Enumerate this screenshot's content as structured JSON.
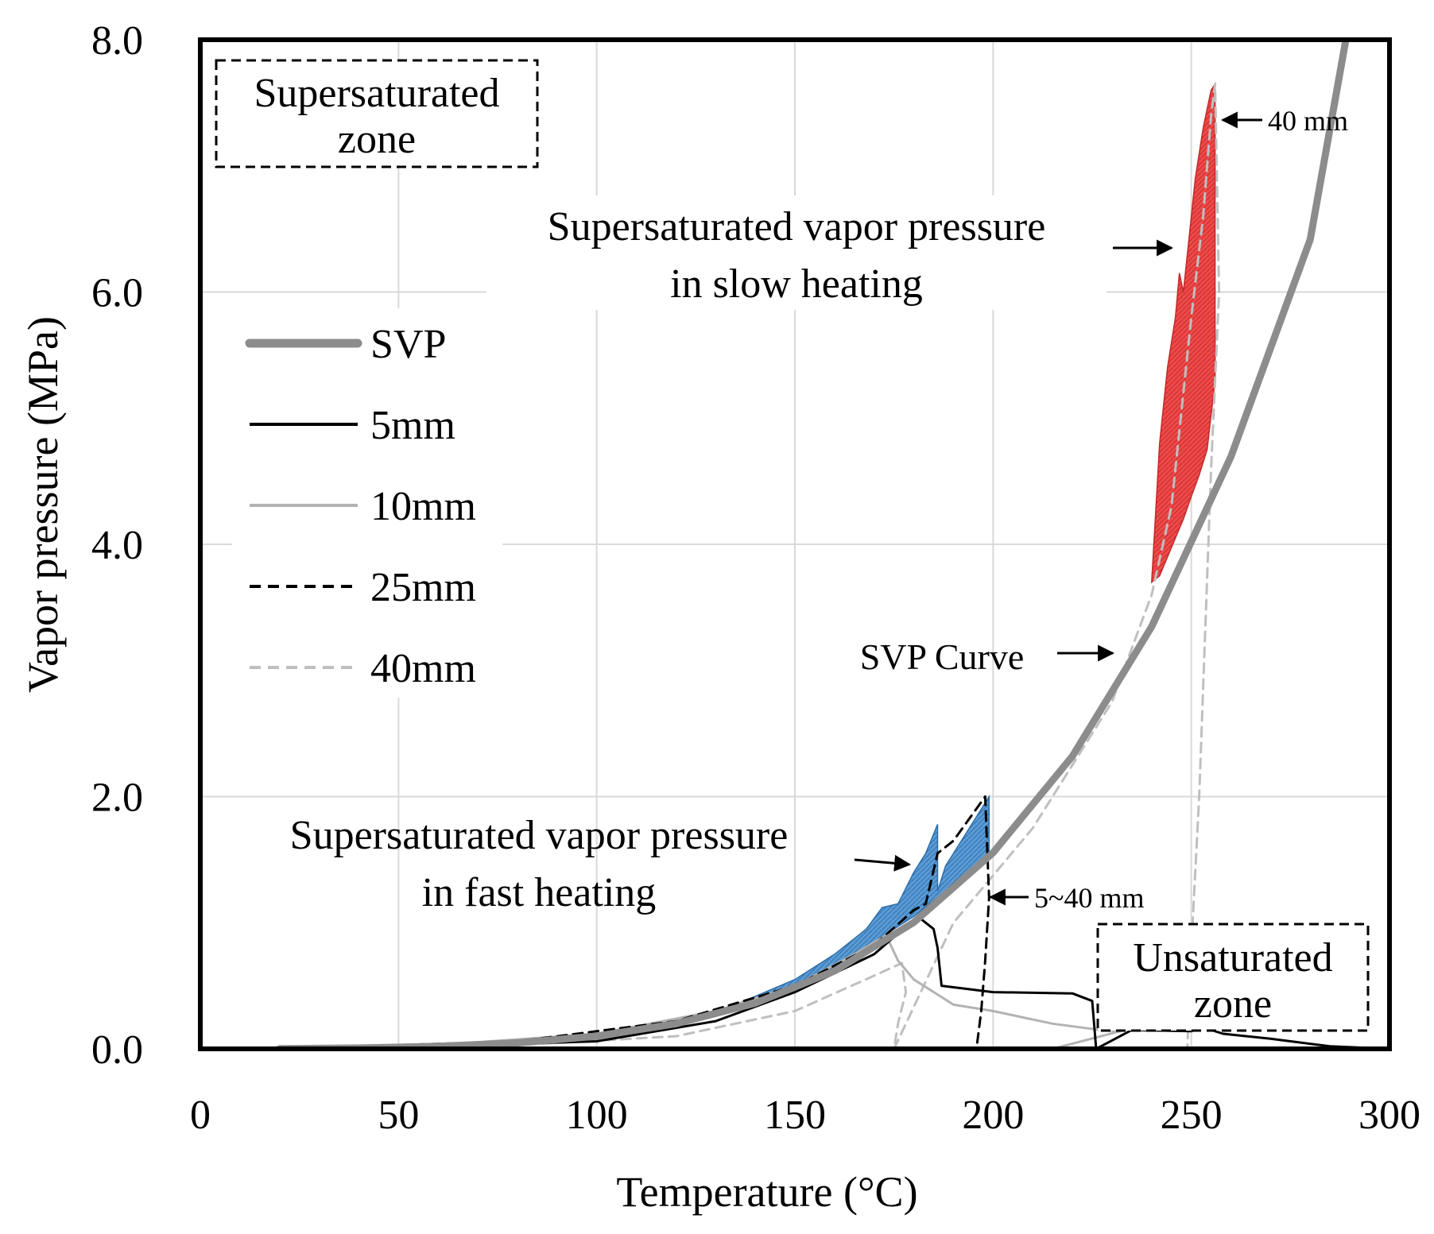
{
  "chart_data": {
    "type": "line",
    "title": "",
    "xlabel": "Temperature (°C)",
    "ylabel": "Vapor pressure (MPa)",
    "xlim": [
      0,
      300
    ],
    "ylim": [
      0,
      8
    ],
    "x_ticks": [
      0,
      50,
      100,
      150,
      200,
      250,
      300
    ],
    "x_tick_labels": [
      "0",
      "50",
      "100",
      "150",
      "200",
      "250",
      "300"
    ],
    "y_ticks": [
      0,
      2,
      4,
      6,
      8
    ],
    "y_tick_labels": [
      "0.0",
      "2.0",
      "4.0",
      "6.0",
      "8.0"
    ],
    "grid": true,
    "legend_position": "left-center",
    "legend": [
      "SVP",
      "5mm",
      "10mm",
      "25mm",
      "40mm"
    ],
    "colors": {
      "svp": "#8c8c8c",
      "mm5": "#000000",
      "mm10": "#b3b3b3",
      "mm25": "#000000",
      "mm40": "#bfbfbf",
      "fast_fill": "#5b9bd5",
      "slow_fill": "#ef4a4a",
      "grid": "#d9d9d9",
      "frame": "#000000"
    },
    "series": [
      {
        "name": "SVP",
        "style": "thick-solid",
        "x": [
          20,
          40,
          60,
          80,
          100,
          120,
          140,
          160,
          180,
          200,
          220,
          240,
          260,
          280,
          289
        ],
        "y": [
          0.002,
          0.007,
          0.02,
          0.047,
          0.101,
          0.199,
          0.362,
          0.618,
          1.003,
          1.555,
          2.32,
          3.347,
          4.694,
          6.417,
          8.0
        ]
      },
      {
        "name": "5mm",
        "style": "solid",
        "x": [
          5,
          50,
          100,
          130,
          150,
          170,
          181,
          185,
          186,
          187,
          200,
          220,
          225,
          226,
          235,
          250,
          253,
          258,
          270,
          285,
          300
        ],
        "y": [
          0,
          0.01,
          0.06,
          0.22,
          0.45,
          0.75,
          1.05,
          0.95,
          0.8,
          0.5,
          0.45,
          0.44,
          0.38,
          0.0,
          0.15,
          0.14,
          0.17,
          0.12,
          0.08,
          0.02,
          0.0
        ]
      },
      {
        "name": "10mm",
        "style": "solid",
        "x": [
          20,
          60,
          100,
          130,
          150,
          165,
          173,
          176,
          180,
          190,
          200,
          215,
          227,
          232,
          215,
          300
        ],
        "y": [
          0.01,
          0.03,
          0.12,
          0.3,
          0.5,
          0.75,
          0.9,
          0.7,
          0.55,
          0.35,
          0.3,
          0.2,
          0.15,
          0.14,
          0.0,
          0.0
        ]
      },
      {
        "name": "25mm",
        "style": "dashed",
        "x": [
          30,
          80,
          120,
          150,
          170,
          180,
          183,
          186,
          190,
          198,
          199,
          198,
          197,
          196
        ],
        "y": [
          0.01,
          0.06,
          0.22,
          0.5,
          0.82,
          1.1,
          1.15,
          1.55,
          1.65,
          2.0,
          1.2,
          0.7,
          0.3,
          0.05
        ]
      },
      {
        "name": "40mm",
        "style": "dashed",
        "x": [
          30,
          80,
          120,
          150,
          170,
          177,
          178,
          176,
          175,
          190,
          210,
          230,
          240,
          245,
          250,
          253,
          255,
          256,
          257,
          255,
          252,
          250,
          249
        ],
        "y": [
          0.005,
          0.03,
          0.1,
          0.3,
          0.58,
          0.68,
          0.45,
          0.2,
          0.0,
          1.0,
          1.75,
          2.75,
          3.6,
          4.3,
          5.8,
          6.6,
          7.4,
          7.65,
          6.0,
          4.6,
          2.0,
          0.8,
          0.0
        ]
      }
    ],
    "regions": [
      {
        "name": "Supersaturated vapor pressure in fast heating",
        "x": [
          135,
          150,
          160,
          168,
          172,
          176,
          180,
          183,
          186,
          186,
          188,
          192,
          196,
          199,
          199,
          196,
          192,
          188,
          184,
          180,
          170,
          160,
          150,
          140,
          135
        ],
        "y": [
          0.35,
          0.55,
          0.75,
          0.95,
          1.12,
          1.15,
          1.4,
          1.55,
          1.78,
          1.25,
          1.45,
          1.65,
          1.85,
          2.0,
          1.55,
          1.45,
          1.35,
          1.25,
          1.15,
          1.05,
          0.85,
          0.65,
          0.48,
          0.36,
          0.35
        ]
      },
      {
        "name": "Supersaturated vapor pressure in slow heating",
        "x": [
          240,
          242,
          244,
          246,
          247,
          248,
          249,
          250,
          251,
          253,
          254,
          255,
          256,
          256,
          254,
          252,
          250,
          248,
          246,
          244,
          242,
          240
        ],
        "y": [
          3.7,
          4.8,
          5.4,
          5.8,
          6.15,
          6.0,
          6.3,
          6.6,
          6.9,
          7.3,
          7.45,
          7.6,
          7.65,
          5.3,
          4.75,
          4.55,
          4.38,
          4.2,
          4.05,
          3.9,
          3.75,
          3.7
        ]
      }
    ],
    "annotations": {
      "supersaturated_zone": [
        "Supersaturated",
        "zone"
      ],
      "unsaturated_zone": [
        "Unsaturated",
        "zone"
      ],
      "slow_heating": [
        "Supersaturated vapor pressure",
        "in slow heating"
      ],
      "fast_heating": [
        "Supersaturated vapor pressure",
        "in fast heating"
      ],
      "svp_curve": "SVP Curve",
      "mm40_label": "40 mm",
      "mm5_40_label": "5~40 mm"
    }
  }
}
